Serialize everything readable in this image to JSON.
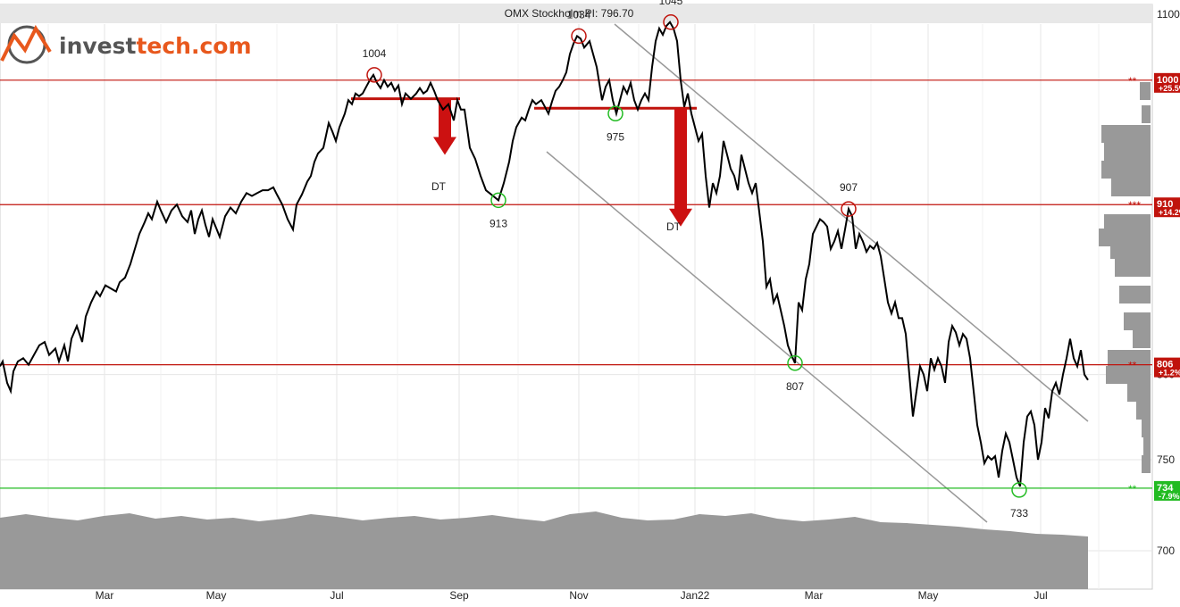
{
  "brand": {
    "name_part1": "invest",
    "name_part2": "tech.com"
  },
  "colors": {
    "price_line": "#000000",
    "resistance": "#c0130c",
    "support": "#22bb22",
    "trend_channel": "#999999",
    "volume": "#999999",
    "top_circle": "#c0130c",
    "bottom_circle": "#22bb22"
  },
  "chart_data": {
    "type": "line",
    "title": "OMX Stockholm PI: 796.70",
    "log_scale": true,
    "ylim": [
      660,
      1100
    ],
    "y_ticks": [
      700,
      750,
      800,
      1100
    ],
    "y_tick_labels": [
      "700",
      "750",
      "800",
      "1100"
    ],
    "x_ticks": [
      "Mar",
      "May",
      "Jul",
      "Sep",
      "Nov",
      "Jan22",
      "Mar",
      "May",
      "Jul"
    ],
    "grid": true,
    "series": [
      {
        "values": [
          [
            0,
            805
          ],
          [
            3,
            808
          ],
          [
            8,
            795
          ],
          [
            12,
            790
          ],
          [
            15,
            802
          ],
          [
            20,
            808
          ],
          [
            26,
            810
          ],
          [
            32,
            806
          ],
          [
            38,
            812
          ],
          [
            44,
            818
          ],
          [
            50,
            820
          ],
          [
            55,
            812
          ],
          [
            62,
            816
          ],
          [
            66,
            808
          ],
          [
            72,
            818
          ],
          [
            76,
            808
          ],
          [
            80,
            822
          ],
          [
            86,
            830
          ],
          [
            92,
            820
          ],
          [
            96,
            836
          ],
          [
            102,
            845
          ],
          [
            108,
            852
          ],
          [
            112,
            849
          ],
          [
            118,
            856
          ],
          [
            124,
            854
          ],
          [
            130,
            852
          ],
          [
            134,
            858
          ],
          [
            140,
            861
          ],
          [
            146,
            870
          ],
          [
            150,
            878
          ],
          [
            156,
            890
          ],
          [
            162,
            898
          ],
          [
            166,
            904
          ],
          [
            170,
            900
          ],
          [
            176,
            912
          ],
          [
            180,
            906
          ],
          [
            186,
            898
          ],
          [
            192,
            906
          ],
          [
            198,
            910
          ],
          [
            204,
            902
          ],
          [
            210,
            898
          ],
          [
            214,
            906
          ],
          [
            218,
            890
          ],
          [
            222,
            900
          ],
          [
            226,
            906
          ],
          [
            230,
            896
          ],
          [
            234,
            888
          ],
          [
            238,
            900
          ],
          [
            242,
            894
          ],
          [
            246,
            888
          ],
          [
            252,
            902
          ],
          [
            258,
            908
          ],
          [
            264,
            904
          ],
          [
            270,
            912
          ],
          [
            276,
            918
          ],
          [
            282,
            916
          ],
          [
            288,
            918
          ],
          [
            294,
            920
          ],
          [
            300,
            920
          ],
          [
            306,
            922
          ],
          [
            310,
            917
          ],
          [
            316,
            910
          ],
          [
            322,
            900
          ],
          [
            328,
            893
          ],
          [
            332,
            910
          ],
          [
            338,
            917
          ],
          [
            344,
            926
          ],
          [
            348,
            930
          ],
          [
            352,
            940
          ],
          [
            356,
            946
          ],
          [
            362,
            950
          ],
          [
            368,
            968
          ],
          [
            372,
            962
          ],
          [
            376,
            955
          ],
          [
            380,
            965
          ],
          [
            386,
            975
          ],
          [
            390,
            985
          ],
          [
            394,
            982
          ],
          [
            398,
            990
          ],
          [
            402,
            988
          ],
          [
            406,
            990
          ],
          [
            410,
            995
          ],
          [
            414,
            1000
          ],
          [
            418,
            1004
          ],
          [
            422,
            998
          ],
          [
            426,
            994
          ],
          [
            430,
            1000
          ],
          [
            434,
            995
          ],
          [
            438,
            998
          ],
          [
            442,
            992
          ],
          [
            446,
            996
          ],
          [
            450,
            982
          ],
          [
            454,
            990
          ],
          [
            460,
            986
          ],
          [
            466,
            990
          ],
          [
            470,
            994
          ],
          [
            474,
            990
          ],
          [
            478,
            992
          ],
          [
            482,
            998
          ],
          [
            486,
            992
          ],
          [
            490,
            985
          ],
          [
            496,
            978
          ],
          [
            502,
            982
          ],
          [
            508,
            970
          ],
          [
            512,
            985
          ],
          [
            516,
            978
          ],
          [
            520,
            978
          ],
          [
            526,
            950
          ],
          [
            532,
            942
          ],
          [
            538,
            930
          ],
          [
            544,
            920
          ],
          [
            548,
            918
          ],
          [
            554,
            915
          ],
          [
            558,
            913
          ],
          [
            564,
            925
          ],
          [
            570,
            940
          ],
          [
            574,
            955
          ],
          [
            578,
            965
          ],
          [
            584,
            972
          ],
          [
            588,
            970
          ],
          [
            592,
            978
          ],
          [
            596,
            985
          ],
          [
            600,
            982
          ],
          [
            606,
            985
          ],
          [
            610,
            980
          ],
          [
            614,
            975
          ],
          [
            618,
            984
          ],
          [
            622,
            992
          ],
          [
            626,
            995
          ],
          [
            630,
            1000
          ],
          [
            634,
            1006
          ],
          [
            638,
            1020
          ],
          [
            642,
            1028
          ],
          [
            646,
            1034
          ],
          [
            650,
            1032
          ],
          [
            654,
            1025
          ],
          [
            660,
            1030
          ],
          [
            664,
            1020
          ],
          [
            668,
            1010
          ],
          [
            674,
            985
          ],
          [
            678,
            995
          ],
          [
            682,
            1000
          ],
          [
            686,
            985
          ],
          [
            690,
            975
          ],
          [
            694,
            985
          ],
          [
            698,
            995
          ],
          [
            702,
            990
          ],
          [
            706,
            998
          ],
          [
            710,
            985
          ],
          [
            714,
            978
          ],
          [
            718,
            985
          ],
          [
            722,
            990
          ],
          [
            726,
            985
          ],
          [
            730,
            1010
          ],
          [
            734,
            1030
          ],
          [
            738,
            1040
          ],
          [
            742,
            1035
          ],
          [
            746,
            1042
          ],
          [
            750,
            1045
          ],
          [
            754,
            1040
          ],
          [
            758,
            1030
          ],
          [
            762,
            1000
          ],
          [
            766,
            980
          ],
          [
            770,
            990
          ],
          [
            774,
            975
          ],
          [
            778,
            965
          ],
          [
            782,
            955
          ],
          [
            786,
            960
          ],
          [
            790,
            930
          ],
          [
            794,
            908
          ],
          [
            798,
            925
          ],
          [
            802,
            918
          ],
          [
            806,
            930
          ],
          [
            810,
            955
          ],
          [
            814,
            945
          ],
          [
            818,
            935
          ],
          [
            822,
            930
          ],
          [
            826,
            920
          ],
          [
            830,
            945
          ],
          [
            834,
            935
          ],
          [
            838,
            925
          ],
          [
            842,
            918
          ],
          [
            846,
            925
          ],
          [
            850,
            905
          ],
          [
            854,
            885
          ],
          [
            858,
            855
          ],
          [
            862,
            860
          ],
          [
            866,
            845
          ],
          [
            870,
            850
          ],
          [
            874,
            840
          ],
          [
            878,
            830
          ],
          [
            882,
            818
          ],
          [
            886,
            812
          ],
          [
            890,
            807
          ],
          [
            894,
            845
          ],
          [
            898,
            840
          ],
          [
            902,
            860
          ],
          [
            906,
            870
          ],
          [
            910,
            890
          ],
          [
            914,
            895
          ],
          [
            918,
            900
          ],
          [
            922,
            898
          ],
          [
            926,
            895
          ],
          [
            930,
            880
          ],
          [
            934,
            885
          ],
          [
            938,
            892
          ],
          [
            942,
            880
          ],
          [
            946,
            893
          ],
          [
            950,
            907
          ],
          [
            954,
            902
          ],
          [
            958,
            880
          ],
          [
            962,
            890
          ],
          [
            966,
            885
          ],
          [
            970,
            878
          ],
          [
            974,
            882
          ],
          [
            978,
            880
          ],
          [
            982,
            884
          ],
          [
            986,
            875
          ],
          [
            990,
            860
          ],
          [
            994,
            845
          ],
          [
            998,
            838
          ],
          [
            1002,
            845
          ],
          [
            1006,
            835
          ],
          [
            1010,
            835
          ],
          [
            1014,
            825
          ],
          [
            1018,
            800
          ],
          [
            1022,
            775
          ],
          [
            1026,
            790
          ],
          [
            1030,
            805
          ],
          [
            1034,
            800
          ],
          [
            1038,
            790
          ],
          [
            1042,
            810
          ],
          [
            1046,
            803
          ],
          [
            1050,
            810
          ],
          [
            1054,
            805
          ],
          [
            1058,
            795
          ],
          [
            1062,
            820
          ],
          [
            1066,
            830
          ],
          [
            1070,
            826
          ],
          [
            1074,
            818
          ],
          [
            1078,
            825
          ],
          [
            1082,
            822
          ],
          [
            1086,
            810
          ],
          [
            1090,
            790
          ],
          [
            1094,
            770
          ],
          [
            1098,
            760
          ],
          [
            1102,
            748
          ],
          [
            1106,
            752
          ],
          [
            1110,
            750
          ],
          [
            1114,
            752
          ],
          [
            1118,
            740
          ],
          [
            1122,
            755
          ],
          [
            1126,
            765
          ],
          [
            1130,
            760
          ],
          [
            1134,
            750
          ],
          [
            1138,
            740
          ],
          [
            1142,
            735
          ],
          [
            1146,
            760
          ],
          [
            1150,
            775
          ],
          [
            1154,
            778
          ],
          [
            1158,
            770
          ],
          [
            1162,
            750
          ],
          [
            1166,
            760
          ],
          [
            1170,
            780
          ],
          [
            1174,
            774
          ],
          [
            1178,
            790
          ],
          [
            1182,
            795
          ],
          [
            1186,
            788
          ],
          [
            1190,
            800
          ],
          [
            1194,
            810
          ],
          [
            1198,
            822
          ],
          [
            1202,
            810
          ],
          [
            1206,
            805
          ],
          [
            1210,
            815
          ],
          [
            1214,
            800
          ],
          [
            1218,
            796.7
          ]
        ]
      }
    ],
    "horizontal_levels": [
      {
        "value": 1000,
        "label": "1000",
        "change": "+25.5%",
        "stars": "**",
        "kind": "resistance"
      },
      {
        "value": 910,
        "label": "910",
        "change": "+14.2%",
        "stars": "***",
        "kind": "resistance"
      },
      {
        "value": 806,
        "label": "806",
        "change": "+1.2%",
        "stars": "**",
        "kind": "resistance"
      },
      {
        "value": 734,
        "label": "734",
        "change": "-7.9%",
        "stars": "**",
        "kind": "support"
      }
    ],
    "peaks": [
      {
        "value": 1004,
        "label": "1004",
        "type": "top"
      },
      {
        "value": 1034,
        "label": "1034",
        "type": "top"
      },
      {
        "value": 1045,
        "label": "1045",
        "type": "top"
      },
      {
        "value": 907,
        "label": "907",
        "type": "top"
      },
      {
        "value": 913,
        "label": "913",
        "type": "bottom"
      },
      {
        "value": 975,
        "label": "975",
        "type": "bottom"
      },
      {
        "value": 807,
        "label": "807",
        "type": "bottom"
      },
      {
        "value": 733,
        "label": "733",
        "type": "bottom"
      }
    ],
    "patterns": [
      {
        "label": "DT",
        "neckline": 986
      },
      {
        "label": "DT",
        "neckline": 979
      }
    ]
  }
}
